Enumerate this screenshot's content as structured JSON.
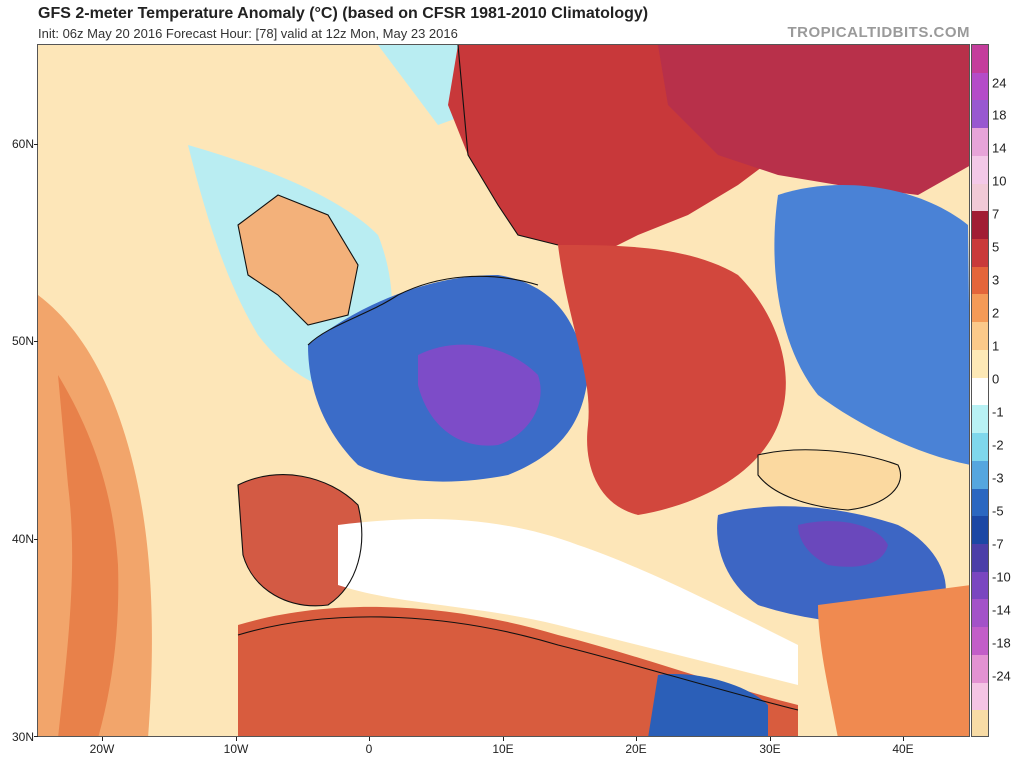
{
  "header": {
    "title": "GFS 2-meter Temperature Anomaly (°C) (based on CFSR 1981-2010 Climatology)",
    "subtitle": "Init: 06z May 20 2016   Forecast Hour: [78]   valid at 12z Mon, May 23 2016",
    "brand": "TROPICALTIDBITS.COM"
  },
  "axes": {
    "lat_labels": [
      "60N",
      "50N",
      "40N",
      "30N"
    ],
    "lon_labels": [
      "20W",
      "10W",
      "0",
      "10E",
      "20E",
      "30E",
      "40E"
    ]
  },
  "colorbar": {
    "labels": [
      "24",
      "18",
      "14",
      "10",
      "7",
      "5",
      "3",
      "2",
      "1",
      "0",
      "-1",
      "-2",
      "-3",
      "-5",
      "-7",
      "-10",
      "-14",
      "-18",
      "-24"
    ],
    "colors": [
      "#c43d9c",
      "#b44cc8",
      "#9858d0",
      "#e7a4d9",
      "#f3c8e8",
      "#f0c9d6",
      "#a11d34",
      "#c93a3a",
      "#e4653a",
      "#f49a57",
      "#fbc98a",
      "#fde9b6",
      "#ffffff",
      "#b8f1f4",
      "#7fd7ec",
      "#55a6df",
      "#2b67c0",
      "#1b47a4",
      "#4c3fa8",
      "#7a47c0",
      "#a352c8",
      "#c25ec8",
      "#e392d2",
      "#f4c4e4",
      "#f8dca6"
    ]
  },
  "map_regions": {
    "ocean": "#fde6b8",
    "atlantic_warm": "#f2a56b",
    "atlantic_core": "#e8814a",
    "cool_sea": "#b9edf2",
    "western_europe": "#3b6cc8",
    "alps": "#7d4cc8",
    "eastern_europe": "#d2473d",
    "scandinavia": "#c8383a",
    "russia_cold": "#4a82d6",
    "north_africa": "#d85c3e",
    "turkey": "#3d66c4",
    "black_sea": "#fbd9a0",
    "mediterranean": "#ffffff",
    "land_border": "#111111"
  }
}
